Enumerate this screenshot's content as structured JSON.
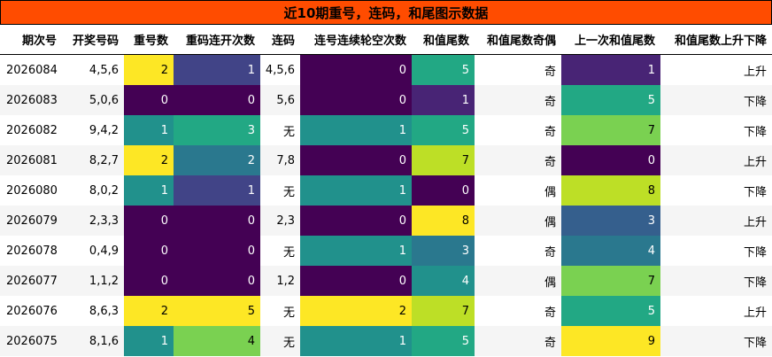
{
  "title": "近10期重号，连码，和尾图示数据",
  "columns": [
    "期次号",
    "开奖号码",
    "重号数",
    "重码连开次数",
    "连码",
    "连号连续轮空次数",
    "和值尾数",
    "和值尾数奇偶",
    "上一次和值尾数",
    "和值尾数上升下降"
  ],
  "rows": [
    {
      "period": "2026084",
      "numbers": "4,5,6",
      "repeat": "2",
      "repeat_streak": "1",
      "consec": "4,5,6",
      "consec_miss": "0",
      "tail": "5",
      "parity": "奇",
      "prev_tail": "1",
      "trend": "上升"
    },
    {
      "period": "2026083",
      "numbers": "5,0,6",
      "repeat": "0",
      "repeat_streak": "0",
      "consec": "5,6",
      "consec_miss": "0",
      "tail": "1",
      "parity": "奇",
      "prev_tail": "5",
      "trend": "下降"
    },
    {
      "period": "2026082",
      "numbers": "9,4,2",
      "repeat": "1",
      "repeat_streak": "3",
      "consec": "无",
      "consec_miss": "1",
      "tail": "5",
      "parity": "奇",
      "prev_tail": "7",
      "trend": "下降"
    },
    {
      "period": "2026081",
      "numbers": "8,2,7",
      "repeat": "2",
      "repeat_streak": "2",
      "consec": "7,8",
      "consec_miss": "0",
      "tail": "7",
      "parity": "奇",
      "prev_tail": "0",
      "trend": "上升"
    },
    {
      "period": "2026080",
      "numbers": "8,0,2",
      "repeat": "1",
      "repeat_streak": "1",
      "consec": "无",
      "consec_miss": "1",
      "tail": "0",
      "parity": "偶",
      "prev_tail": "8",
      "trend": "下降"
    },
    {
      "period": "2026079",
      "numbers": "2,3,3",
      "repeat": "0",
      "repeat_streak": "0",
      "consec": "2,3",
      "consec_miss": "0",
      "tail": "8",
      "parity": "偶",
      "prev_tail": "3",
      "trend": "上升"
    },
    {
      "period": "2026078",
      "numbers": "0,4,9",
      "repeat": "0",
      "repeat_streak": "0",
      "consec": "无",
      "consec_miss": "1",
      "tail": "3",
      "parity": "奇",
      "prev_tail": "4",
      "trend": "下降"
    },
    {
      "period": "2026077",
      "numbers": "1,1,2",
      "repeat": "0",
      "repeat_streak": "0",
      "consec": "1,2",
      "consec_miss": "0",
      "tail": "4",
      "parity": "偶",
      "prev_tail": "7",
      "trend": "下降"
    },
    {
      "period": "2026076",
      "numbers": "8,6,3",
      "repeat": "2",
      "repeat_streak": "5",
      "consec": "无",
      "consec_miss": "2",
      "tail": "7",
      "parity": "奇",
      "prev_tail": "5",
      "trend": "上升"
    },
    {
      "period": "2026075",
      "numbers": "8,1,6",
      "repeat": "1",
      "repeat_streak": "4",
      "consec": "无",
      "consec_miss": "1",
      "tail": "5",
      "parity": "奇",
      "prev_tail": "9",
      "trend": "下降"
    }
  ],
  "colors": {
    "title_bg": "#ff4c00",
    "heat_scale": [
      "#440154",
      "#482475",
      "#414487",
      "#355f8d",
      "#2a788e",
      "#21918c",
      "#22a884",
      "#44bf70",
      "#7ad151",
      "#bddf26",
      "#fde725"
    ]
  }
}
